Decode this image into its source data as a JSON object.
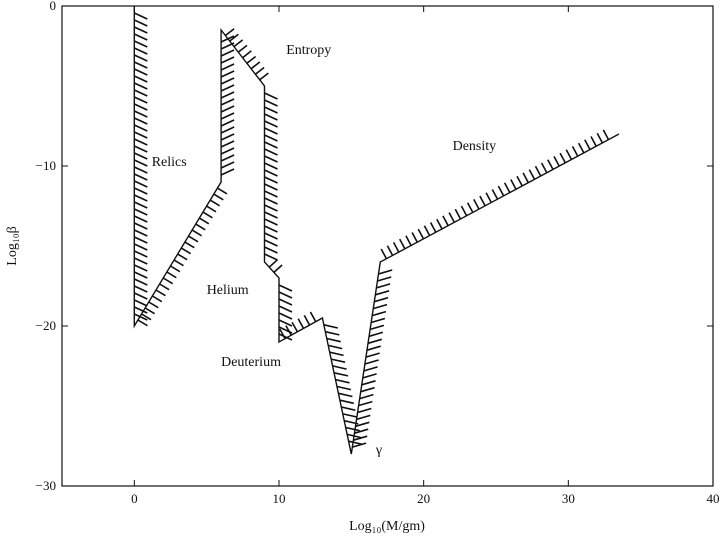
{
  "chart_data": {
    "type": "line",
    "xlabel": "Log₁₀(M/gm)",
    "ylabel": "Log₁₀β",
    "xlim": [
      -5,
      40
    ],
    "ylim": [
      -30,
      0
    ],
    "xticks": [
      0,
      10,
      20,
      30,
      40
    ],
    "yticks": [
      0,
      -10,
      -20,
      -30
    ],
    "grid": false,
    "colors": {
      "line": "#111111",
      "hatch": "#111111",
      "background": "#ffffff"
    },
    "boundary": {
      "x": [
        0,
        0,
        6,
        6,
        9,
        9,
        10,
        10,
        13,
        15,
        17,
        33.5
      ],
      "y": [
        0,
        -20,
        -11,
        -1.5,
        -5,
        -16,
        -17,
        -21,
        -19.5,
        -28,
        -16,
        -8
      ]
    },
    "annotations": [
      {
        "text": "Entropy",
        "x": 10.5,
        "y": -3
      },
      {
        "text": "Relics",
        "x": 1.2,
        "y": -10
      },
      {
        "text": "Density",
        "x": 22,
        "y": -9
      },
      {
        "text": "Helium",
        "x": 5,
        "y": -18
      },
      {
        "text": "Deuterium",
        "x": 6,
        "y": -22.5
      },
      {
        "text": "γ",
        "x": 16.7,
        "y": -28
      }
    ]
  }
}
